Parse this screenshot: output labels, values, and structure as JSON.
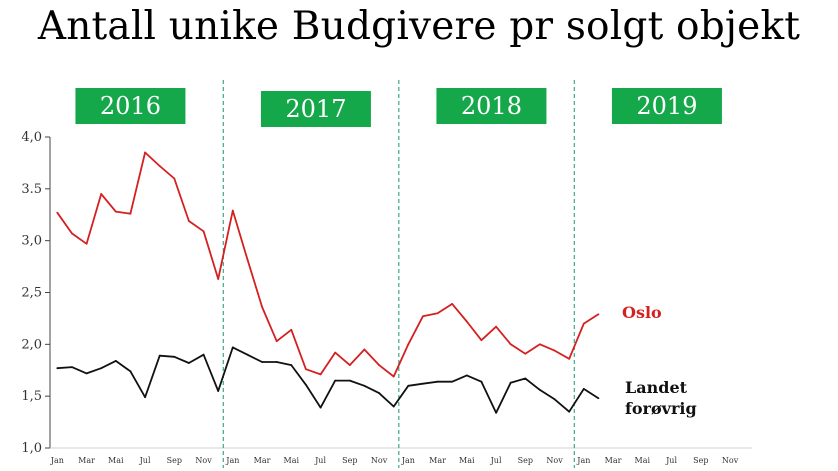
{
  "chart_data": {
    "type": "line",
    "title": "Antall unike Budgivere pr solgt objekt",
    "xlabel": "",
    "ylabel": "",
    "ylim": [
      1.0,
      4.0
    ],
    "yticks": [
      "1,0",
      "1,5",
      "2,0",
      "2,5",
      "3,0",
      "3.5",
      "4,0"
    ],
    "ytick_values": [
      1.0,
      1.5,
      2.0,
      2.5,
      3.0,
      3.5,
      4.0
    ],
    "month_labels": [
      "Jan",
      "Mar",
      "Mai",
      "Jul",
      "Sep",
      "Nov"
    ],
    "month_label_indices": [
      0,
      2,
      4,
      6,
      8,
      10
    ],
    "years": [
      "2016",
      "2017",
      "2018",
      "2019"
    ],
    "year_box_color": "#15a84a",
    "divider_color": "#3aa98a",
    "months_per_year": 12,
    "total_months": 48,
    "series": [
      {
        "name": "Oslo",
        "color": "#d42020",
        "values": [
          3.27,
          3.07,
          2.97,
          3.45,
          3.28,
          3.26,
          3.85,
          3.72,
          3.6,
          3.19,
          3.09,
          2.63,
          3.29,
          2.82,
          2.36,
          2.03,
          2.14,
          1.76,
          1.71,
          1.92,
          1.8,
          1.95,
          1.8,
          1.69,
          2.0,
          2.27,
          2.3,
          2.39,
          2.22,
          2.04,
          2.17,
          2.0,
          1.91,
          2.0,
          1.94,
          1.86,
          2.2,
          2.29
        ]
      },
      {
        "name": "Landet forøvrig",
        "label_lines": [
          "Landet",
          "forøvrig"
        ],
        "color": "#111111",
        "values": [
          1.77,
          1.78,
          1.72,
          1.77,
          1.84,
          1.74,
          1.49,
          1.89,
          1.88,
          1.82,
          1.9,
          1.55,
          1.97,
          1.9,
          1.83,
          1.83,
          1.8,
          1.61,
          1.39,
          1.65,
          1.65,
          1.6,
          1.53,
          1.4,
          1.6,
          1.62,
          1.64,
          1.64,
          1.7,
          1.64,
          1.34,
          1.63,
          1.67,
          1.56,
          1.47,
          1.35,
          1.57,
          1.48
        ]
      }
    ]
  }
}
